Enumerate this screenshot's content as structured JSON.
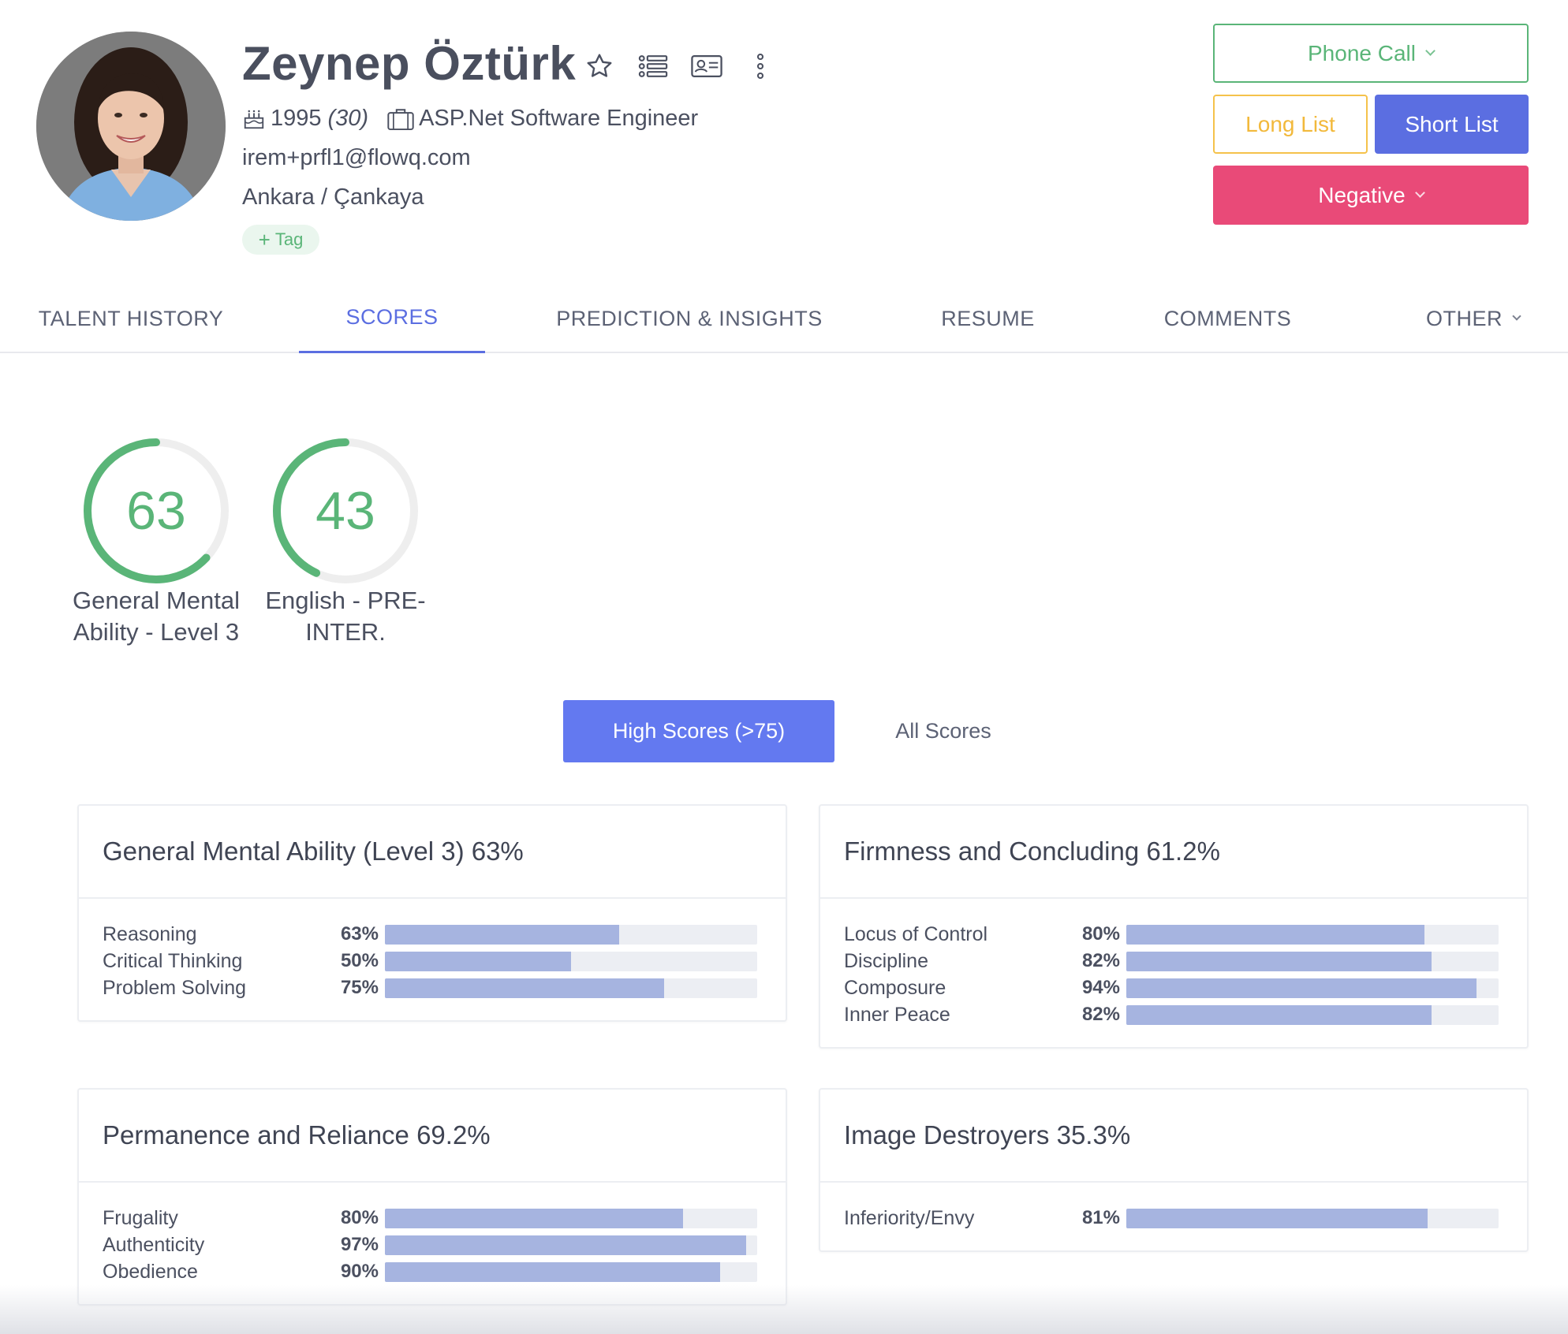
{
  "profile": {
    "name": "Zeynep Öztürk",
    "birth_year": "1995",
    "age": "(30)",
    "job_title": "ASP.Net Software Engineer",
    "email": "irem+prfl1@flowq.com",
    "location": "Ankara / Çankaya",
    "tag_label": "Tag",
    "header_icons": [
      "star-icon",
      "list-icon",
      "id-card-icon",
      "more-vertical-icon"
    ]
  },
  "actions": {
    "phone_call": "Phone Call",
    "long_list": "Long List",
    "short_list": "Short List",
    "negative": "Negative"
  },
  "tabs": [
    {
      "label": "TALENT HISTORY",
      "active": false
    },
    {
      "label": "SCORES",
      "active": true
    },
    {
      "label": "PREDICTION & INSIGHTS",
      "active": false
    },
    {
      "label": "RESUME",
      "active": false
    },
    {
      "label": "COMMENTS",
      "active": false
    },
    {
      "label": "OTHER",
      "active": false
    }
  ],
  "gauges": [
    {
      "value": "63",
      "percent": 63,
      "label_line1": "General Mental",
      "label_line2": "Ability - Level 3"
    },
    {
      "value": "43",
      "percent": 43,
      "label_line1": "English - PRE-",
      "label_line2": "INTER."
    }
  ],
  "filters": {
    "high_scores": "High Scores (>75)",
    "all_scores": "All Scores"
  },
  "score_cards": [
    {
      "title": "General Mental Ability (Level 3) 63%",
      "rows": [
        {
          "label": "Reasoning",
          "pct": "63%",
          "value": 63
        },
        {
          "label": "Critical Thinking",
          "pct": "50%",
          "value": 50
        },
        {
          "label": "Problem Solving",
          "pct": "75%",
          "value": 75
        }
      ]
    },
    {
      "title": "Firmness and Concluding 61.2%",
      "rows": [
        {
          "label": "Locus of Control",
          "pct": "80%",
          "value": 80
        },
        {
          "label": "Discipline",
          "pct": "82%",
          "value": 82
        },
        {
          "label": "Composure",
          "pct": "94%",
          "value": 94
        },
        {
          "label": "Inner Peace",
          "pct": "82%",
          "value": 82
        }
      ]
    },
    {
      "title": "Permanence and Reliance 69.2%",
      "rows": [
        {
          "label": "Frugality",
          "pct": "80%",
          "value": 80
        },
        {
          "label": "Authenticity",
          "pct": "97%",
          "value": 97
        },
        {
          "label": "Obedience",
          "pct": "90%",
          "value": 90
        }
      ]
    },
    {
      "title": "Image Destroyers 35.3%",
      "rows": [
        {
          "label": "Inferiority/Envy",
          "pct": "81%",
          "value": 81
        }
      ]
    }
  ],
  "colors": {
    "accent": "#5b6ee1",
    "green": "#5ab578",
    "yellow": "#f2b93b",
    "pink": "#e94a78",
    "bar_fill": "#a6b4e0",
    "bar_track": "#eceef3"
  }
}
